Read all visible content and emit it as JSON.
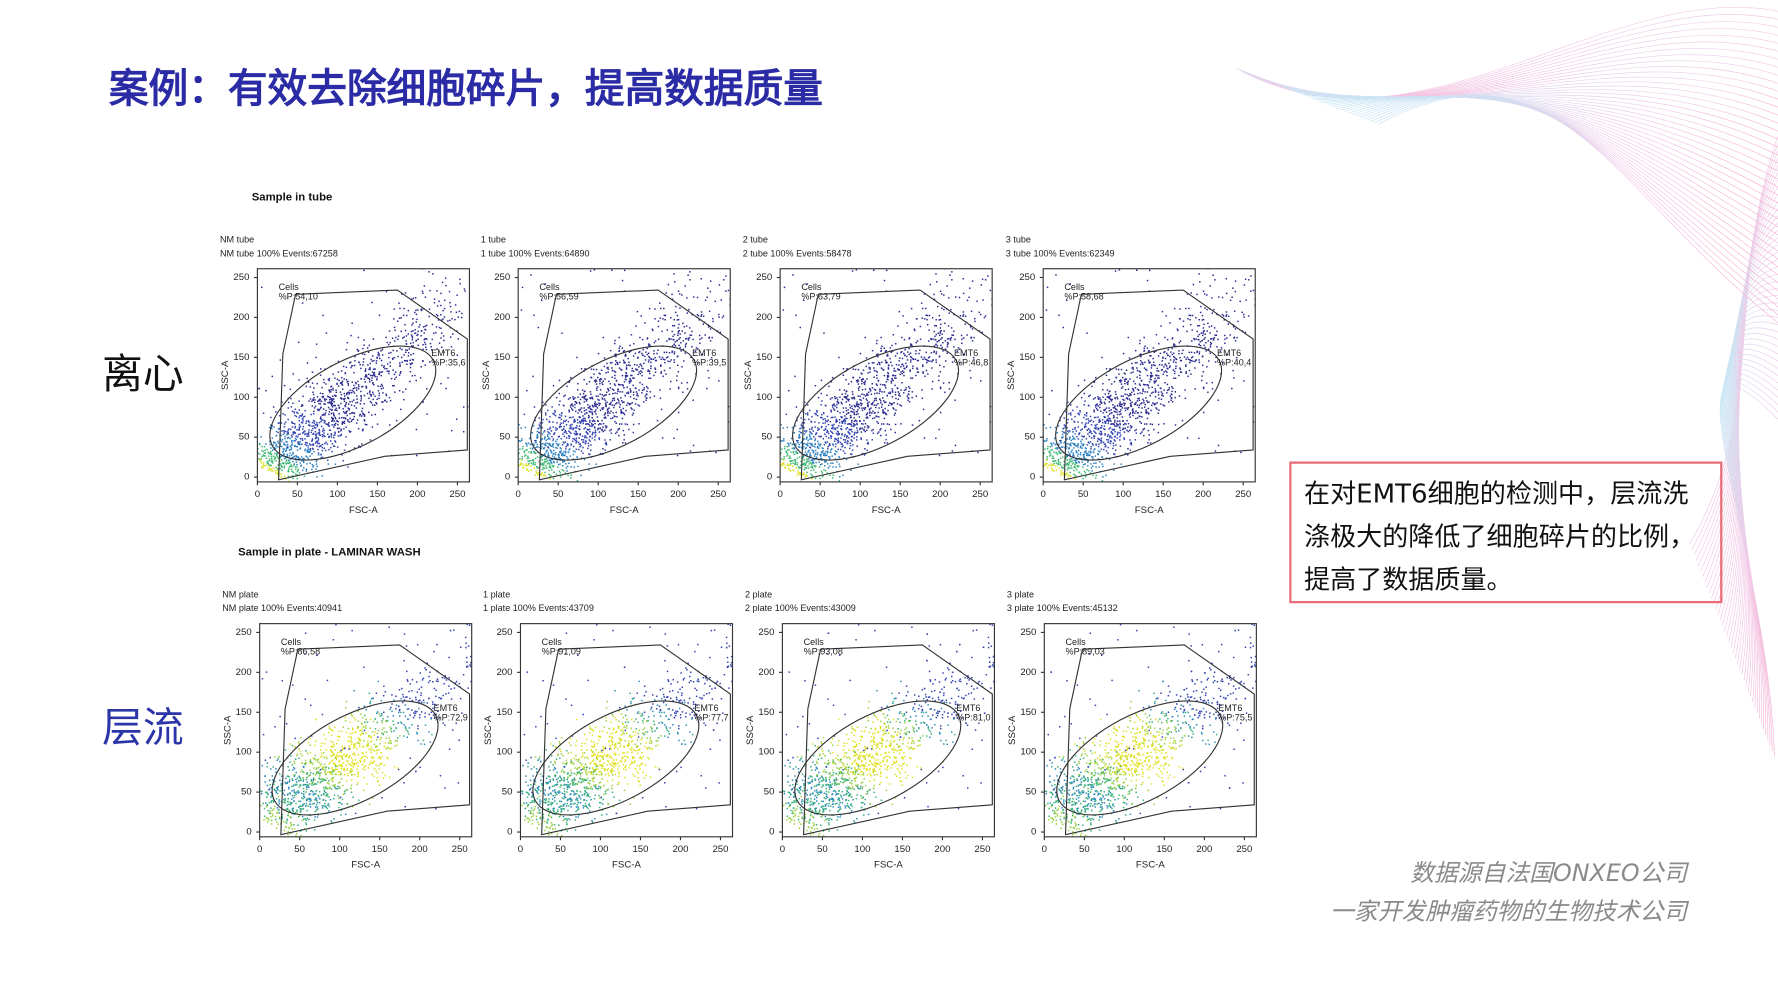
{
  "title": "案例：有效去除细胞碎片，提高数据质量",
  "axis": {
    "ticks": [
      0,
      50,
      100,
      150,
      200,
      250
    ],
    "xlim": [
      0,
      265
    ],
    "ylim": [
      -6,
      261
    ],
    "x_label": "FSC-A",
    "y_label": "SSC-A"
  },
  "groups": [
    {
      "row_label": "离心",
      "heading": "Sample in tube",
      "plots": [
        {
          "name": "NM tube",
          "info": "NM tube 100% Events:67258",
          "gate1": "Cells",
          "gate1_pct": "%P:54,10",
          "gate2": "EMT6",
          "gate2_pct": "%P:35,6"
        },
        {
          "name": "1 tube",
          "info": "1 tube 100% Events:64890",
          "gate1": "Cells",
          "gate1_pct": "%P:56,59",
          "gate2": "EMT6",
          "gate2_pct": "%P:39,5"
        },
        {
          "name": "2 tube",
          "info": "2 tube 100% Events:58478",
          "gate1": "Cells",
          "gate1_pct": "%P:63,79",
          "gate2": "EMT6",
          "gate2_pct": "%P:46,8"
        },
        {
          "name": "3 tube",
          "info": "3 tube 100% Events:62349",
          "gate1": "Cells",
          "gate1_pct": "%P:58,68",
          "gate2": "EMT6",
          "gate2_pct": "%P:40,4"
        }
      ]
    },
    {
      "row_label": "层流",
      "heading": "Sample in plate - LAMINAR WASH",
      "plots": [
        {
          "name": "NM plate",
          "info": "NM plate 100% Events:40941",
          "gate1": "Cells",
          "gate1_pct": "%P:86,58",
          "gate2": "EMT6",
          "gate2_pct": "%P:72,9"
        },
        {
          "name": "1 plate",
          "info": "1 plate 100% Events:43709",
          "gate1": "Cells",
          "gate1_pct": "%P:91,09",
          "gate2": "EMT6",
          "gate2_pct": "%P:77,7"
        },
        {
          "name": "2 plate",
          "info": "2 plate 100% Events:43009",
          "gate1": "Cells",
          "gate1_pct": "%P:93,08",
          "gate2": "EMT6",
          "gate2_pct": "%P:81,0"
        },
        {
          "name": "3 plate",
          "info": "3 plate 100% Events:45132",
          "gate1": "Cells",
          "gate1_pct": "%P:89,03",
          "gate2": "EMT6",
          "gate2_pct": "%P:75,5"
        }
      ]
    }
  ],
  "note": "在对EMT6细胞的检测中，层流洗涤极大的降低了细胞碎片的比例，提高了数据质量。",
  "source": [
    "数据源自法国ONXEO公司",
    "一家开发肿瘤药物的生物技术公司"
  ]
}
